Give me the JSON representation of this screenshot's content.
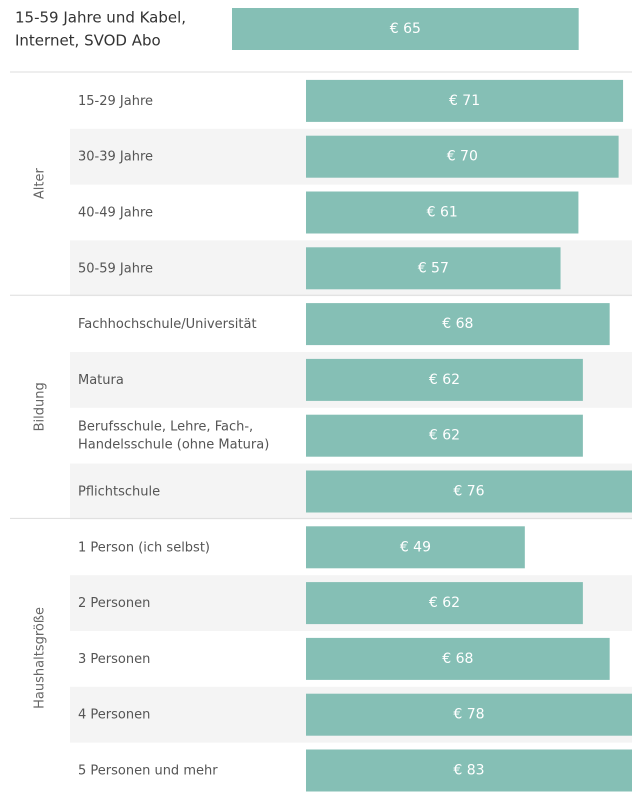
{
  "chart_data": [
    {
      "type": "bar",
      "categories": [
        "15-59 Jahre und Kabel, Internet, SVOD Abo"
      ],
      "values": [
        65
      ],
      "value_labels": [
        "€ 65"
      ],
      "color": "#85bfb5",
      "xlim": [
        0,
        75
      ]
    },
    {
      "type": "bar",
      "color": "#85bfb5",
      "xlim": [
        0,
        73
      ],
      "groups": [
        {
          "name": "Alter",
          "categories": [
            "15-29 Jahre",
            "30-39 Jahre",
            "40-49 Jahre",
            "50-59 Jahre"
          ],
          "values": [
            71,
            70,
            61,
            57
          ],
          "value_labels": [
            "€ 71",
            "€ 70",
            "€ 61",
            "€ 57"
          ]
        },
        {
          "name": "Bildung",
          "categories": [
            "Fachhochschule/Universität",
            "Matura",
            "Berufsschule, Lehre, Fach-, Handelsschule (ohne Matura)",
            "Pflichtschule"
          ],
          "values": [
            68,
            62,
            62,
            76
          ],
          "value_labels": [
            "€ 68",
            "€ 62",
            "€ 62",
            "€ 76"
          ]
        },
        {
          "name": "Haushaltsgröße",
          "categories": [
            "1 Person (ich selbst)",
            "2 Personen",
            "3 Personen",
            "4 Personen",
            "5 Personen und mehr"
          ],
          "values": [
            49,
            62,
            68,
            78,
            83
          ],
          "value_labels": [
            "€ 49",
            "€ 62",
            "€ 68",
            "€ 78",
            "€ 83"
          ]
        }
      ]
    }
  ]
}
